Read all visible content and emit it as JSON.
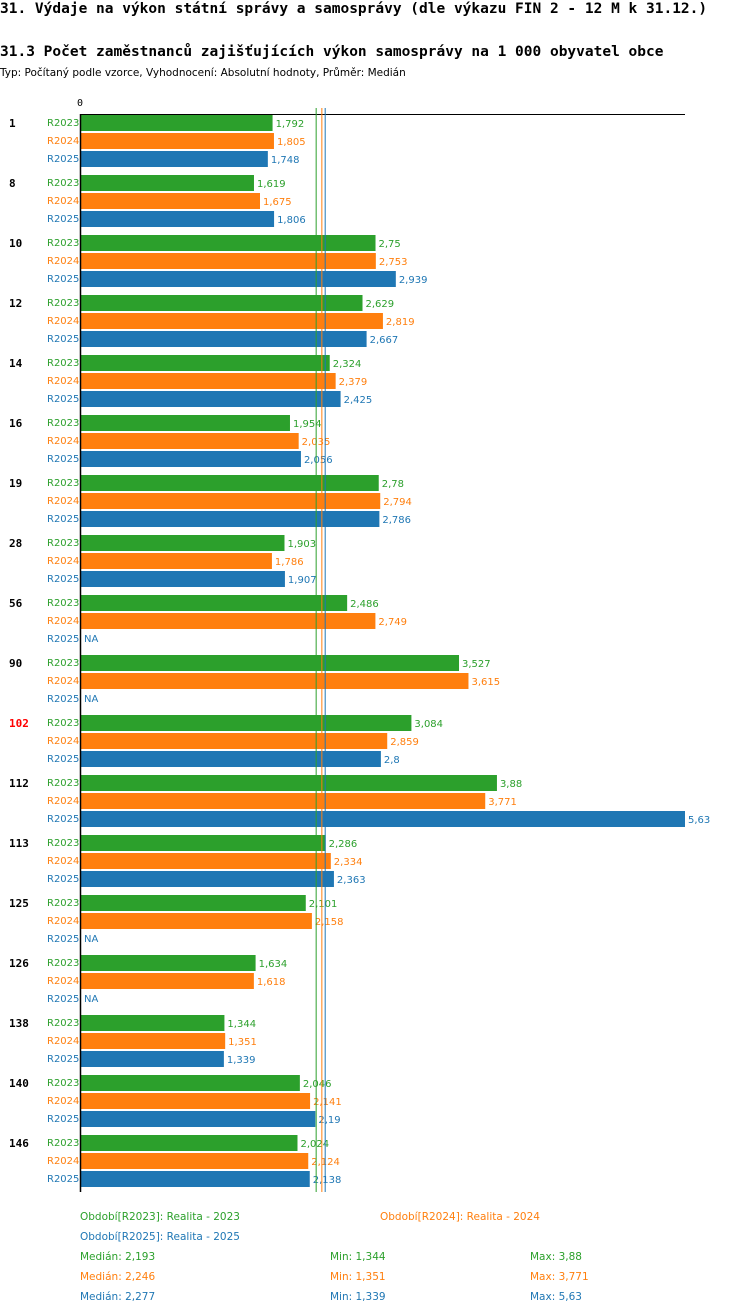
{
  "page": {
    "title": "31. Výdaje na výkon státní správy a samosprávy (dle výkazu FIN 2 - 12 M k 31.12.)",
    "subtitle": "31.3 Počet zaměstnanců zajišťujících výkon samosprávy na 1 000 obyvatel obce",
    "info": "Typ: Počítaný podle vzorce, Vyhodnocení: Absolutní hodnoty, Průměr: Medián"
  },
  "colors": {
    "R2023": "#2ca02c",
    "R2024": "#ff7f0e",
    "R2025": "#1f77b4",
    "highlight": "#ff0000"
  },
  "chart_data": {
    "type": "bar",
    "orientation": "horizontal",
    "axis_zero_label": "0",
    "xlim": [
      0,
      5.63
    ],
    "na_label": "NA",
    "highlight_category": "102",
    "series_names": [
      "R2023",
      "R2024",
      "R2025"
    ],
    "categories": [
      "1",
      "8",
      "10",
      "12",
      "14",
      "16",
      "19",
      "28",
      "56",
      "90",
      "102",
      "112",
      "113",
      "125",
      "126",
      "138",
      "140",
      "146"
    ],
    "series": [
      {
        "name": "R2023",
        "values": [
          1.792,
          1.619,
          2.75,
          2.629,
          2.324,
          1.954,
          2.78,
          1.903,
          2.486,
          3.527,
          3.084,
          3.88,
          2.286,
          2.101,
          1.634,
          1.344,
          2.046,
          2.024
        ],
        "labels": [
          "1,792",
          "1,619",
          "2,75",
          "2,629",
          "2,324",
          "1,954",
          "2,78",
          "1,903",
          "2,486",
          "3,527",
          "3,084",
          "3,88",
          "2,286",
          "2,101",
          "1,634",
          "1,344",
          "2,046",
          "2,024"
        ]
      },
      {
        "name": "R2024",
        "values": [
          1.805,
          1.675,
          2.753,
          2.819,
          2.379,
          2.035,
          2.794,
          1.786,
          2.749,
          3.615,
          2.859,
          3.771,
          2.334,
          2.158,
          1.618,
          1.351,
          2.141,
          2.124
        ],
        "labels": [
          "1,805",
          "1,675",
          "2,753",
          "2,819",
          "2,379",
          "2,035",
          "2,794",
          "1,786",
          "2,749",
          "3,615",
          "2,859",
          "3,771",
          "2,334",
          "2,158",
          "1,618",
          "1,351",
          "2,141",
          "2,124"
        ]
      },
      {
        "name": "R2025",
        "values": [
          1.748,
          1.806,
          2.939,
          2.667,
          2.425,
          2.056,
          2.786,
          1.907,
          null,
          null,
          2.8,
          5.63,
          2.363,
          null,
          null,
          1.339,
          2.19,
          2.138
        ],
        "labels": [
          "1,748",
          "1,806",
          "2,939",
          "2,667",
          "2,425",
          "2,056",
          "2,786",
          "1,907",
          "NA",
          "NA",
          "2,8",
          "5,63",
          "2,363",
          "NA",
          "NA",
          "1,339",
          "2,19",
          "2,138"
        ]
      }
    ],
    "medians": [
      2.193,
      2.246,
      2.277
    ],
    "legend": {
      "periods": [
        "Období[R2023]: Realita - 2023",
        "Období[R2024]: Realita - 2024",
        "Období[R2025]: Realita - 2025"
      ],
      "stats": [
        {
          "median": "Medián: 2,193",
          "min": "Min: 1,344",
          "max": "Max: 3,88"
        },
        {
          "median": "Medián: 2,246",
          "min": "Min: 1,351",
          "max": "Max: 3,771"
        },
        {
          "median": "Medián: 2,277",
          "min": "Min: 1,339",
          "max": "Max: 5,63"
        }
      ]
    }
  }
}
